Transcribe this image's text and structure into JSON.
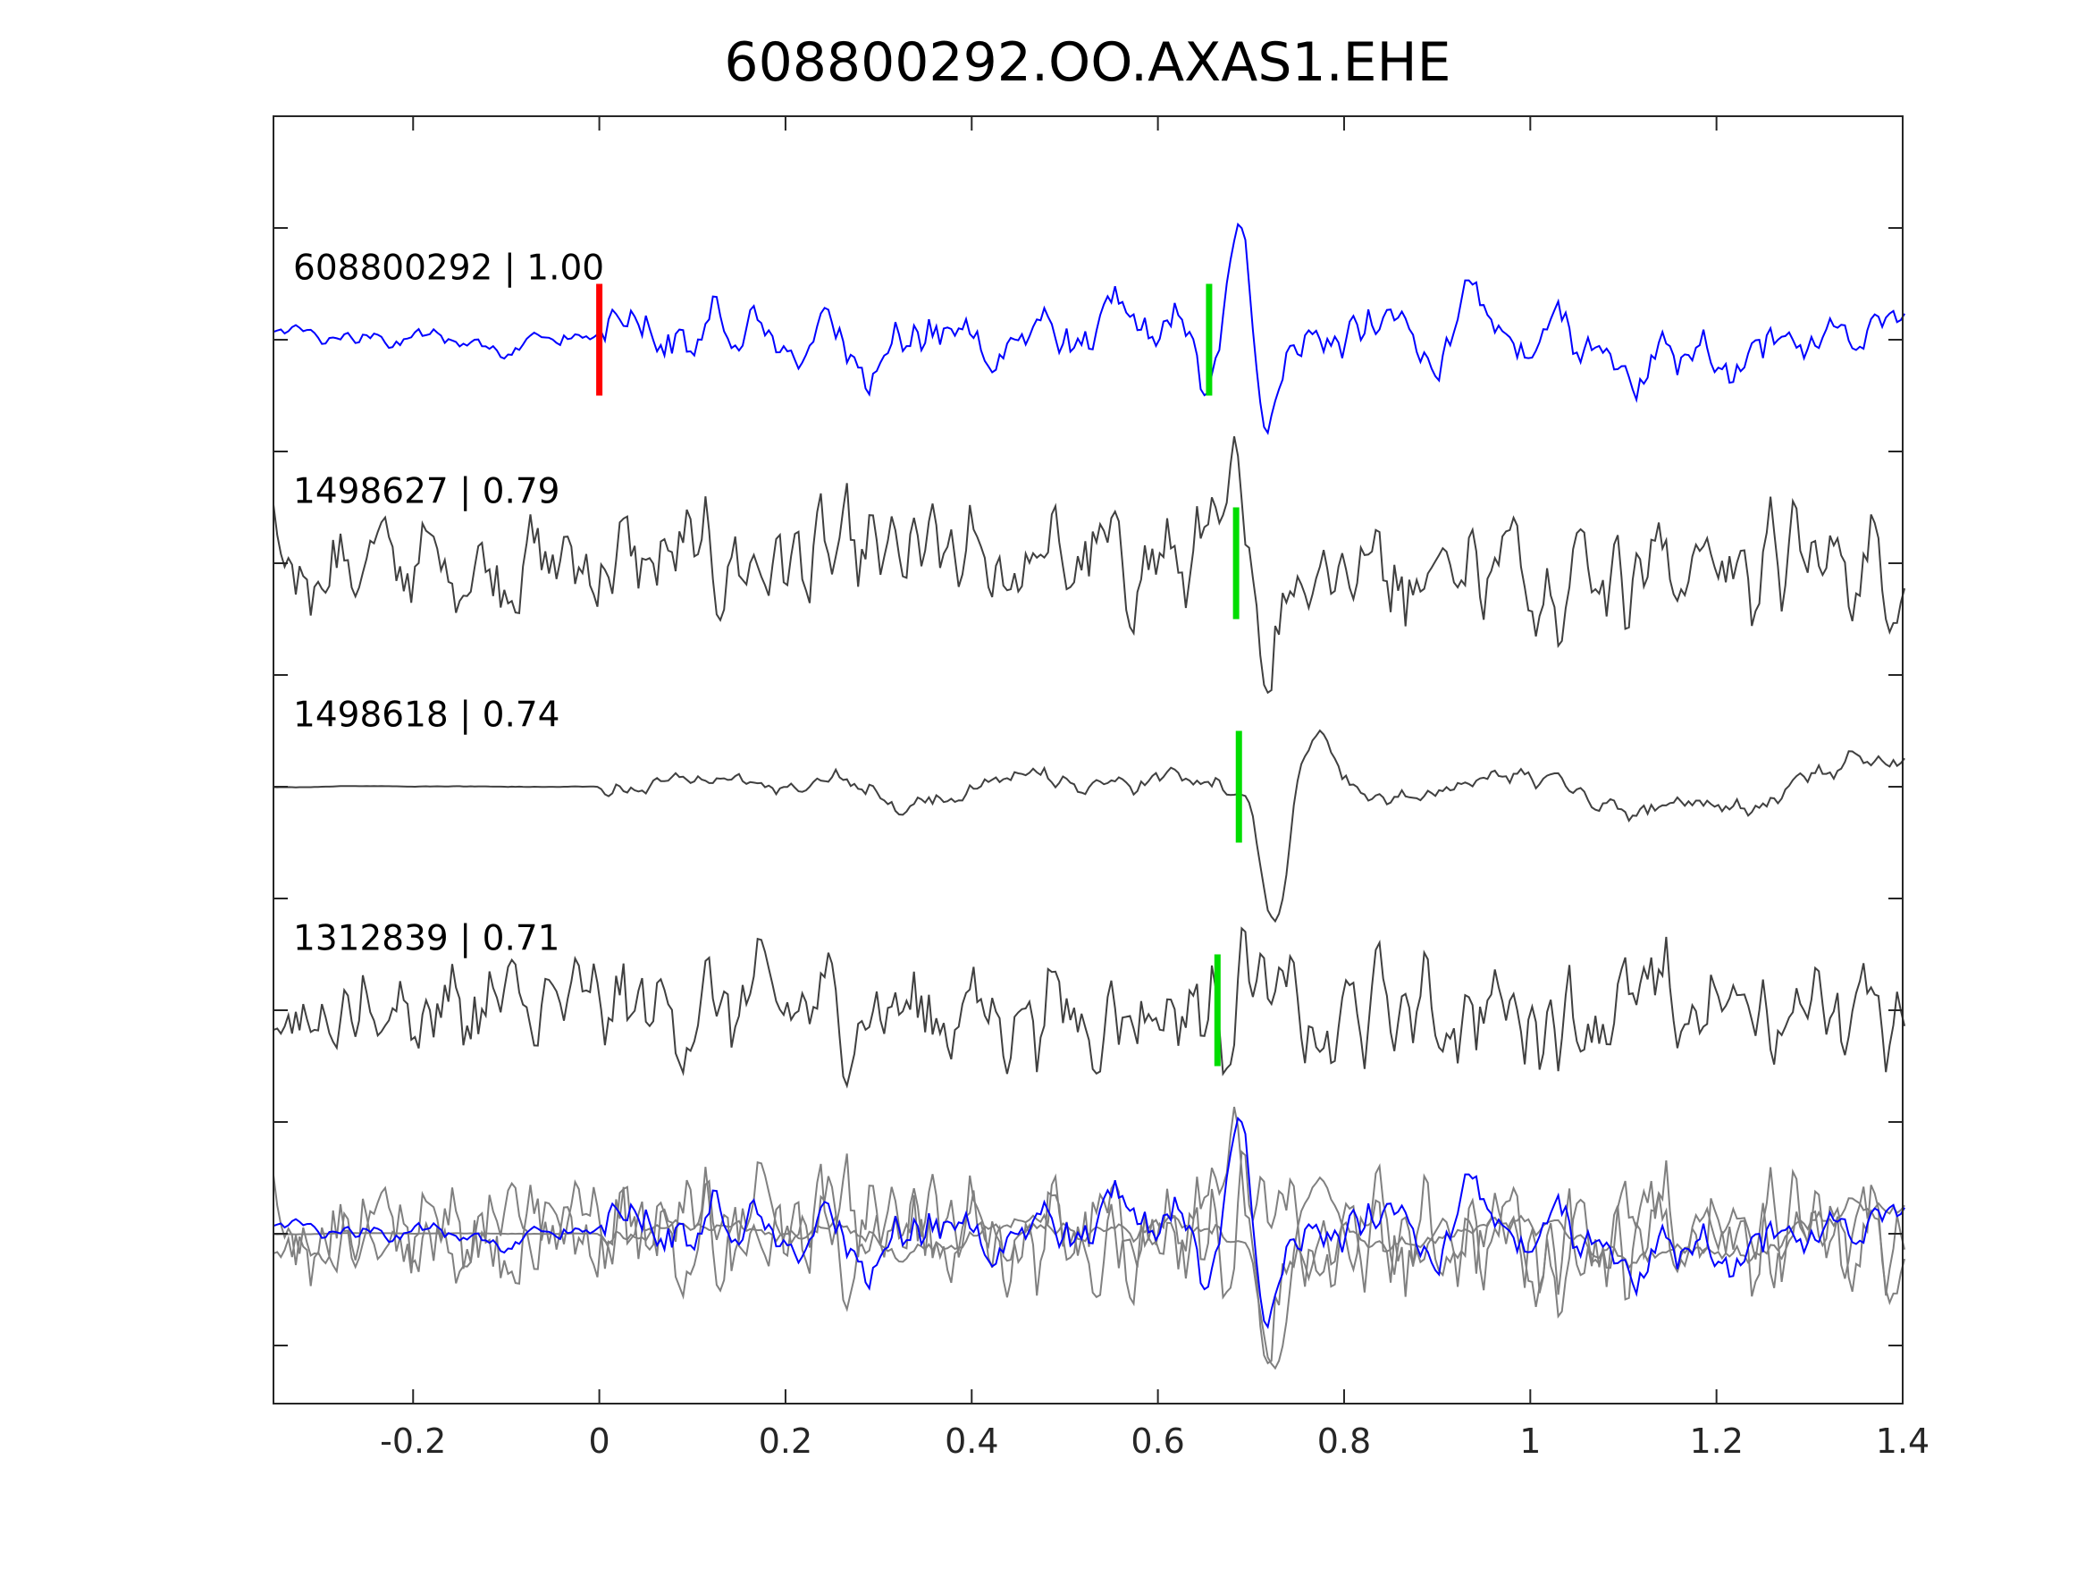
{
  "chart_data": {
    "type": "line",
    "title": "608800292.OO.AXAS1.EHE",
    "xlabel": "",
    "ylabel": "",
    "xlim": [
      -0.35,
      1.4
    ],
    "ylim": [
      -0.76,
      5.0
    ],
    "xticks": [
      -0.2,
      0,
      0.2,
      0.4,
      0.6,
      0.8,
      1,
      1.2,
      1.4
    ],
    "xtick_labels": [
      "-0.2",
      "0",
      "0.2",
      "0.4",
      "0.6",
      "0.8",
      "1",
      "1.2",
      "1.4"
    ],
    "yticks": [
      -0.5,
      0,
      0.5,
      1,
      1.5,
      2,
      2.5,
      3,
      3.5,
      4,
      4.5
    ],
    "grid": false,
    "traces": [
      {
        "name": "608800292",
        "label": "608800292 | 1.00",
        "offset": 4,
        "color": "#0000ff",
        "pick_red": 0.0,
        "pick_green": 0.655,
        "arrival_peak": 0.69,
        "peak_amp": 0.55
      },
      {
        "name": "1498627",
        "label": "1498627 | 0.79",
        "offset": 3,
        "color": "#404040",
        "pick_green": 0.684,
        "arrival_peak": 0.69,
        "peak_amp": 0.5
      },
      {
        "name": "1498618",
        "label": "1498618 | 0.74",
        "offset": 2,
        "color": "#404040",
        "pick_green": 0.687,
        "arrival_peak": 0.725,
        "peak_amp": -0.55
      },
      {
        "name": "1312839",
        "label": "1312839 | 0.71",
        "offset": 1,
        "color": "#404040",
        "pick_green": 0.664,
        "arrival_peak": 0.695,
        "peak_amp": 0.4
      }
    ],
    "stack": {
      "offset": 0,
      "description_color_gray": "#808080",
      "description_color_blue": "#0000ff"
    },
    "pick_colors": {
      "red": "#ff0000",
      "green": "#00dd00"
    }
  }
}
